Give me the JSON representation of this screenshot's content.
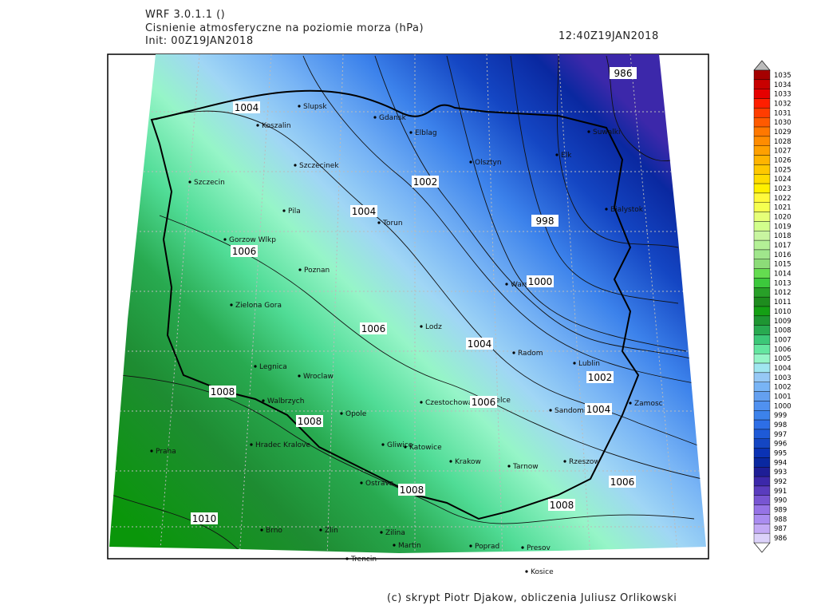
{
  "header": {
    "model": "WRF 3.0.1.1 ()",
    "title": "Cisnienie atmosferyczne na poziomie morza (hPa)",
    "init": "Init: 00Z19JAN2018",
    "valid": "12:40Z19JAN2018"
  },
  "map": {
    "cities": [
      "Slupsk",
      "Gdansk",
      "Koszalin",
      "Elblag",
      "Suwalki",
      "Olsztyn",
      "Elk",
      "Szczecinek",
      "Szczecin",
      "Bialystok",
      "Pila",
      "Torun",
      "Gorzow Wlkp",
      "Poznan",
      "Warszawa",
      "Zielona Gora",
      "Lodz",
      "Radom",
      "Lublin",
      "Legnica",
      "Wroclaw",
      "Walbrzych",
      "Czestochowa",
      "Kielce",
      "Sandomierz",
      "Zamosc",
      "Opole",
      "Hradec Kralove",
      "Gliwice",
      "Katowice",
      "Praha",
      "Krakow",
      "Tarnow",
      "Rzeszow",
      "Ostrava",
      "Brno",
      "Zlin",
      "Zilina",
      "Poprad",
      "Presov",
      "Martin",
      "Trencin",
      "Kosice"
    ],
    "isobar_labels": [
      986,
      1004,
      1002,
      1004,
      998,
      1006,
      1000,
      1006,
      1004,
      1002,
      1006,
      1004,
      1008,
      1008,
      1008,
      1008,
      1006,
      1010
    ]
  },
  "colorbar": {
    "levels": [
      1035,
      1034,
      1033,
      1032,
      1031,
      1030,
      1029,
      1028,
      1027,
      1026,
      1025,
      1024,
      1023,
      1022,
      1021,
      1020,
      1019,
      1018,
      1017,
      1016,
      1015,
      1014,
      1013,
      1012,
      1011,
      1010,
      1009,
      1008,
      1007,
      1006,
      1005,
      1004,
      1003,
      1002,
      1001,
      1000,
      999,
      998,
      997,
      996,
      995,
      994,
      993,
      992,
      991,
      990,
      989,
      988,
      987,
      986
    ],
    "colors": [
      "#a50000",
      "#c80000",
      "#e60000",
      "#ff1e00",
      "#ff3c00",
      "#ff5a00",
      "#ff7800",
      "#ff8c00",
      "#ffa000",
      "#ffb400",
      "#ffc800",
      "#ffdc00",
      "#fff000",
      "#fffa3c",
      "#f5ff50",
      "#e6ff78",
      "#d2ff8c",
      "#c8f5a0",
      "#b4f096",
      "#a0e68c",
      "#8cdc78",
      "#64dc50",
      "#3cc83c",
      "#28a028",
      "#1e8c1e",
      "#14a014",
      "#1e9632",
      "#28aa50",
      "#3cc878",
      "#64e6a0",
      "#96f5c8",
      "#a0e6f0",
      "#96c8f5",
      "#78b4f5",
      "#64a0f0",
      "#5091f0",
      "#3c82eb",
      "#2d6ee6",
      "#1e5ad7",
      "#1446c3",
      "#0a32b4",
      "#0a28a0",
      "#1e1e96",
      "#3c28aa",
      "#5a3cbe",
      "#7855d2",
      "#9673e6",
      "#aa8cf0",
      "#c3aaf5",
      "#dcd2fa"
    ]
  },
  "footer": "(c) skrypt Piotr Djakow, obliczenia Juliusz Orlikowski"
}
